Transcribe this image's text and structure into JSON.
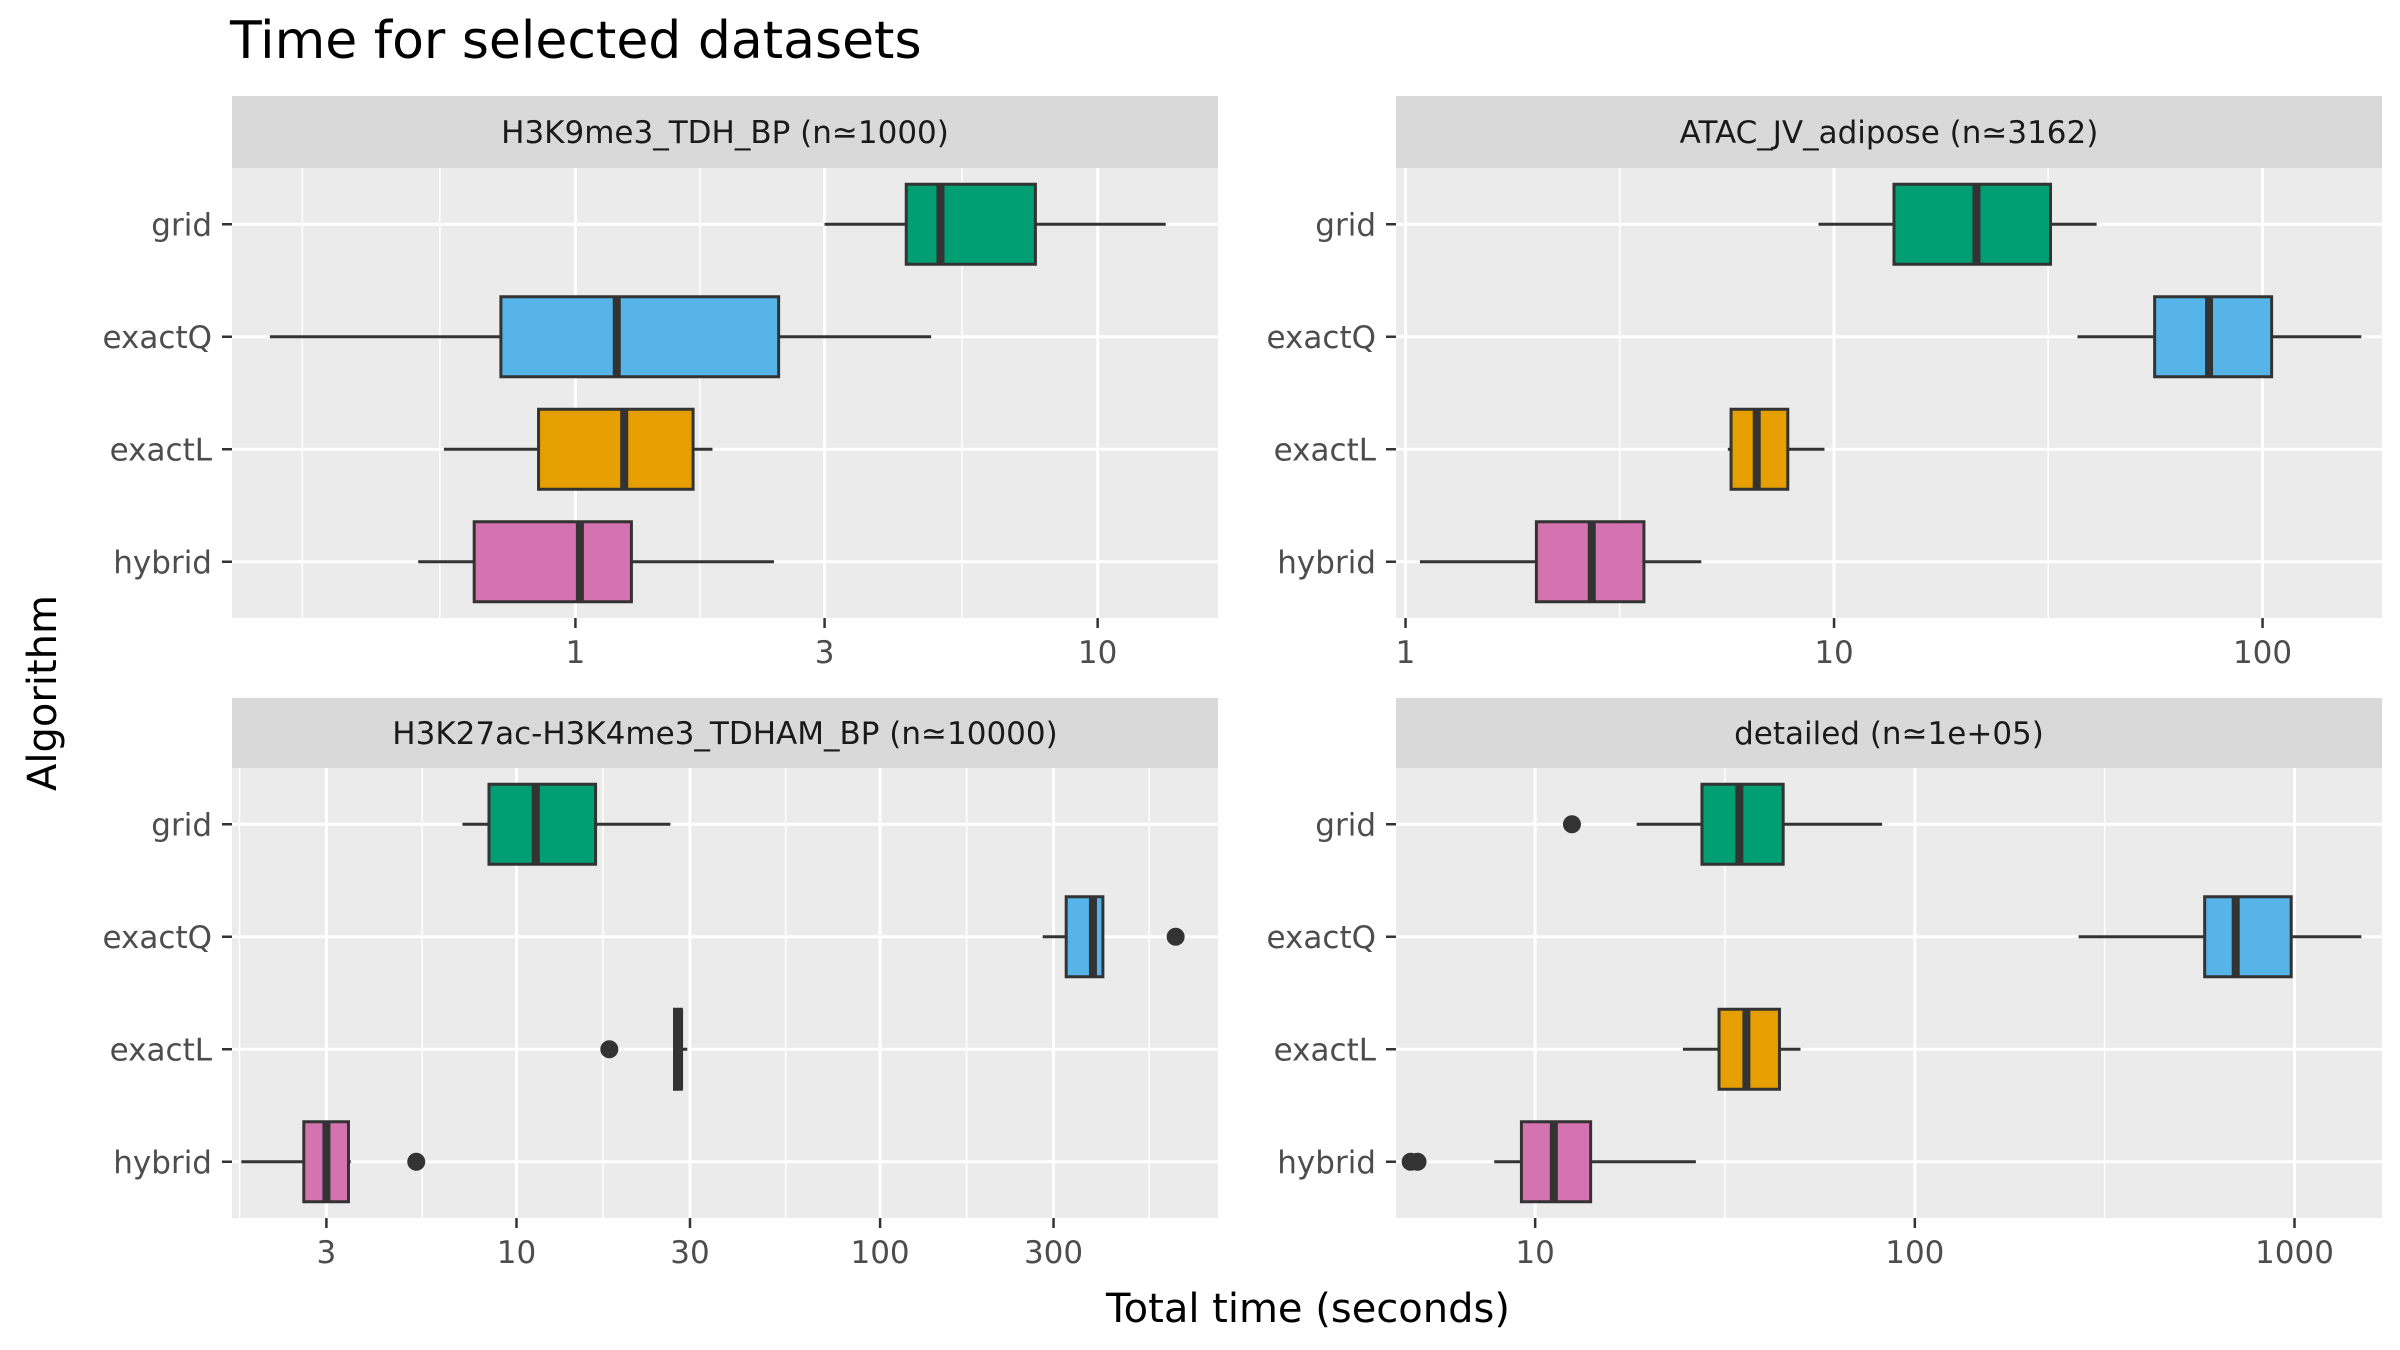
{
  "chart_data": {
    "type": "boxplot",
    "title": "Time for selected datasets",
    "xlabel": "Total time (seconds)",
    "ylabel": "Algorithm",
    "x_scale": "log10",
    "categories": [
      "grid",
      "exactQ",
      "exactL",
      "hybrid"
    ],
    "colors": {
      "grid": "#009E73",
      "exactQ": "#56B4E9",
      "exactL": "#E69F00",
      "hybrid": "#D573B1"
    },
    "panels": [
      {
        "label": "H3K9me3_TDH_BP (n≃1000)",
        "xlim": [
          0.22,
          17
        ],
        "ticks": [
          {
            "value": 1,
            "label": "1"
          },
          {
            "value": 3,
            "label": "3"
          },
          {
            "value": 10,
            "label": "10"
          }
        ],
        "minor": [
          0.3,
          0.55,
          1.73,
          5.5
        ],
        "boxes": [
          {
            "algorithm": "grid",
            "whisker_low": 3.0,
            "q1": 4.3,
            "median": 5.0,
            "q3": 7.6,
            "whisker_high": 13.5,
            "outliers": []
          },
          {
            "algorithm": "exactQ",
            "whisker_low": 0.26,
            "q1": 0.72,
            "median": 1.2,
            "q3": 2.45,
            "whisker_high": 4.8,
            "outliers": []
          },
          {
            "algorithm": "exactL",
            "whisker_low": 0.56,
            "q1": 0.85,
            "median": 1.24,
            "q3": 1.68,
            "whisker_high": 1.83,
            "outliers": []
          },
          {
            "algorithm": "hybrid",
            "whisker_low": 0.5,
            "q1": 0.64,
            "median": 1.02,
            "q3": 1.28,
            "whisker_high": 2.4,
            "outliers": []
          }
        ]
      },
      {
        "label": "ATAC_JV_adipose (n≃3162)",
        "xlim": [
          0.95,
          190
        ],
        "ticks": [
          {
            "value": 1,
            "label": "1"
          },
          {
            "value": 10,
            "label": "10"
          },
          {
            "value": 100,
            "label": "100"
          }
        ],
        "minor": [
          3.16,
          31.6
        ],
        "boxes": [
          {
            "algorithm": "grid",
            "whisker_low": 9.2,
            "q1": 13.8,
            "median": 21.5,
            "q3": 32,
            "whisker_high": 41,
            "outliers": []
          },
          {
            "algorithm": "exactQ",
            "whisker_low": 37,
            "q1": 56,
            "median": 75,
            "q3": 105,
            "whisker_high": 170,
            "outliers": []
          },
          {
            "algorithm": "exactL",
            "whisker_low": 5.65,
            "q1": 5.75,
            "median": 6.6,
            "q3": 7.8,
            "whisker_high": 9.5,
            "outliers": []
          },
          {
            "algorithm": "hybrid",
            "whisker_low": 1.08,
            "q1": 2.02,
            "median": 2.72,
            "q3": 3.6,
            "whisker_high": 4.9,
            "outliers": []
          }
        ]
      },
      {
        "label": "H3K27ac-H3K4me3_TDHAM_BP (n≃10000)",
        "xlim": [
          1.65,
          850
        ],
        "ticks": [
          {
            "value": 3,
            "label": "3"
          },
          {
            "value": 10,
            "label": "10"
          },
          {
            "value": 30,
            "label": "30"
          },
          {
            "value": 100,
            "label": "100"
          },
          {
            "value": 300,
            "label": "300"
          }
        ],
        "minor": [
          1.73,
          5.5,
          17.3,
          55,
          173,
          550
        ],
        "boxes": [
          {
            "algorithm": "grid",
            "whisker_low": 7.1,
            "q1": 8.4,
            "median": 11.3,
            "q3": 16.5,
            "whisker_high": 26.5,
            "outliers": []
          },
          {
            "algorithm": "exactQ",
            "whisker_low": 280,
            "q1": 325,
            "median": 385,
            "q3": 410,
            "whisker_high": 410,
            "outliers": [
              650
            ]
          },
          {
            "algorithm": "exactL",
            "whisker_low": 27.2,
            "q1": 27.2,
            "median": 28.0,
            "q3": 28.4,
            "whisker_high": 29.5,
            "outliers": [
              18
            ]
          },
          {
            "algorithm": "hybrid",
            "whisker_low": 1.75,
            "q1": 2.6,
            "median": 3.0,
            "q3": 3.45,
            "whisker_high": 3.5,
            "outliers": [
              5.3
            ]
          }
        ]
      },
      {
        "label": "detailed (n≃1e+05)",
        "xlim": [
          4.3,
          1700
        ],
        "ticks": [
          {
            "value": 10,
            "label": "10"
          },
          {
            "value": 100,
            "label": "100"
          },
          {
            "value": 1000,
            "label": "1000"
          }
        ],
        "minor": [
          31.6,
          316
        ],
        "boxes": [
          {
            "algorithm": "grid",
            "whisker_low": 18.5,
            "q1": 27.5,
            "median": 34.5,
            "q3": 45,
            "whisker_high": 82,
            "outliers": [
              12.5
            ]
          },
          {
            "algorithm": "exactQ",
            "whisker_low": 270,
            "q1": 580,
            "median": 700,
            "q3": 980,
            "whisker_high": 1500,
            "outliers": []
          },
          {
            "algorithm": "exactL",
            "whisker_low": 24.5,
            "q1": 30.5,
            "median": 36,
            "q3": 44,
            "whisker_high": 50,
            "outliers": []
          },
          {
            "algorithm": "hybrid",
            "whisker_low": 7.8,
            "q1": 9.2,
            "median": 11.2,
            "q3": 14,
            "whisker_high": 26.5,
            "outliers": [
              4.7,
              4.9
            ]
          }
        ]
      }
    ]
  }
}
